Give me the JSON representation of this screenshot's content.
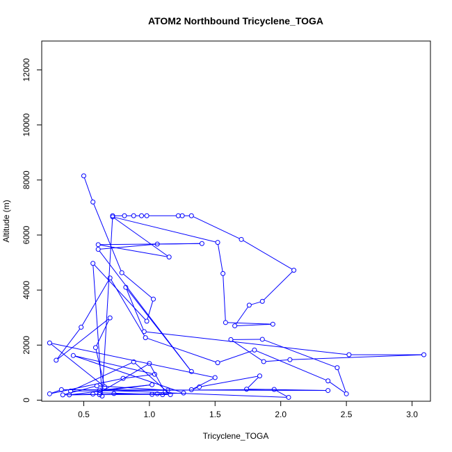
{
  "chart_data": {
    "type": "line",
    "title": "ATOM2 Northbound Tricyclene_TOGA",
    "xlabel": "Tricyclene_TOGA",
    "ylabel": "Altitude (m)",
    "xlim": [
      0.18,
      3.14
    ],
    "ylim": [
      -40,
      13050
    ],
    "xticks": [
      0.5,
      1.0,
      1.5,
      2.0,
      2.5,
      3.0
    ],
    "xtick_labels": [
      "0.5",
      "1.0",
      "1.5",
      "2.0",
      "2.5",
      "3.0"
    ],
    "yticks": [
      0,
      2000,
      4000,
      6000,
      8000,
      10000,
      12000
    ],
    "ytick_labels": [
      "0",
      "2000",
      "4000",
      "6000",
      "8000",
      "10000",
      "12000"
    ],
    "grid": false,
    "legend": "none",
    "series": [
      {
        "color": "#0000ff",
        "marker": "open-circle",
        "points": [
          [
            0.5,
            8150
          ],
          [
            0.57,
            7200
          ],
          [
            0.79,
            4630
          ],
          [
            1.03,
            3670
          ],
          [
            0.98,
            2870
          ],
          [
            0.57,
            4970
          ],
          [
            0.64,
            150
          ],
          [
            0.72,
            6700
          ],
          [
            0.81,
            6700
          ],
          [
            0.88,
            6700
          ],
          [
            0.94,
            6700
          ],
          [
            0.98,
            6700
          ],
          [
            1.22,
            6700
          ],
          [
            1.25,
            6700
          ],
          [
            1.32,
            6700
          ],
          [
            1.7,
            5840
          ],
          [
            2.1,
            4720
          ],
          [
            1.86,
            3590
          ],
          [
            1.76,
            3450
          ],
          [
            1.65,
            2700
          ],
          [
            1.94,
            2760
          ],
          [
            1.58,
            2820
          ],
          [
            1.56,
            4600
          ],
          [
            1.52,
            5730
          ],
          [
            0.72,
            6660
          ],
          [
            1.15,
            5200
          ],
          [
            0.61,
            5650
          ],
          [
            1.4,
            5690
          ],
          [
            1.06,
            5670
          ],
          [
            0.61,
            5480
          ],
          [
            1.32,
            1040
          ],
          [
            0.82,
            4100
          ],
          [
            0.96,
            2490
          ],
          [
            2.52,
            1650
          ],
          [
            3.09,
            1650
          ],
          [
            2.07,
            1470
          ],
          [
            1.87,
            1400
          ],
          [
            1.62,
            2200
          ],
          [
            1.86,
            2210
          ],
          [
            2.43,
            1180
          ],
          [
            2.5,
            230
          ],
          [
            2.36,
            700
          ],
          [
            1.8,
            1820
          ],
          [
            1.52,
            1360
          ],
          [
            0.97,
            2270
          ],
          [
            0.7,
            4440
          ],
          [
            0.48,
            2650
          ],
          [
            0.29,
            1450
          ],
          [
            0.7,
            2990
          ],
          [
            0.59,
            1910
          ],
          [
            0.66,
            480
          ],
          [
            0.24,
            2080
          ],
          [
            1.5,
            820
          ],
          [
            1.32,
            380
          ],
          [
            1.38,
            480
          ],
          [
            1.84,
            880
          ],
          [
            1.74,
            400
          ],
          [
            2.36,
            350
          ],
          [
            0.33,
            380
          ],
          [
            0.24,
            230
          ],
          [
            0.8,
            790
          ],
          [
            1.04,
            940
          ],
          [
            0.42,
            1620
          ],
          [
            1.26,
            260
          ],
          [
            1.02,
            210
          ],
          [
            0.62,
            200
          ],
          [
            0.57,
            220
          ],
          [
            0.34,
            190
          ],
          [
            0.6,
            520
          ],
          [
            1.14,
            360
          ],
          [
            1.12,
            290
          ],
          [
            1.0,
            1330
          ],
          [
            0.62,
            270
          ],
          [
            1.1,
            200
          ],
          [
            0.73,
            240
          ],
          [
            1.16,
            200
          ],
          [
            0.88,
            1390
          ],
          [
            0.4,
            330
          ],
          [
            1.95,
            390
          ],
          [
            2.06,
            100
          ],
          [
            0.62,
            360
          ],
          [
            1.02,
            560
          ],
          [
            0.39,
            190
          ],
          [
            1.06,
            230
          ]
        ]
      }
    ]
  }
}
